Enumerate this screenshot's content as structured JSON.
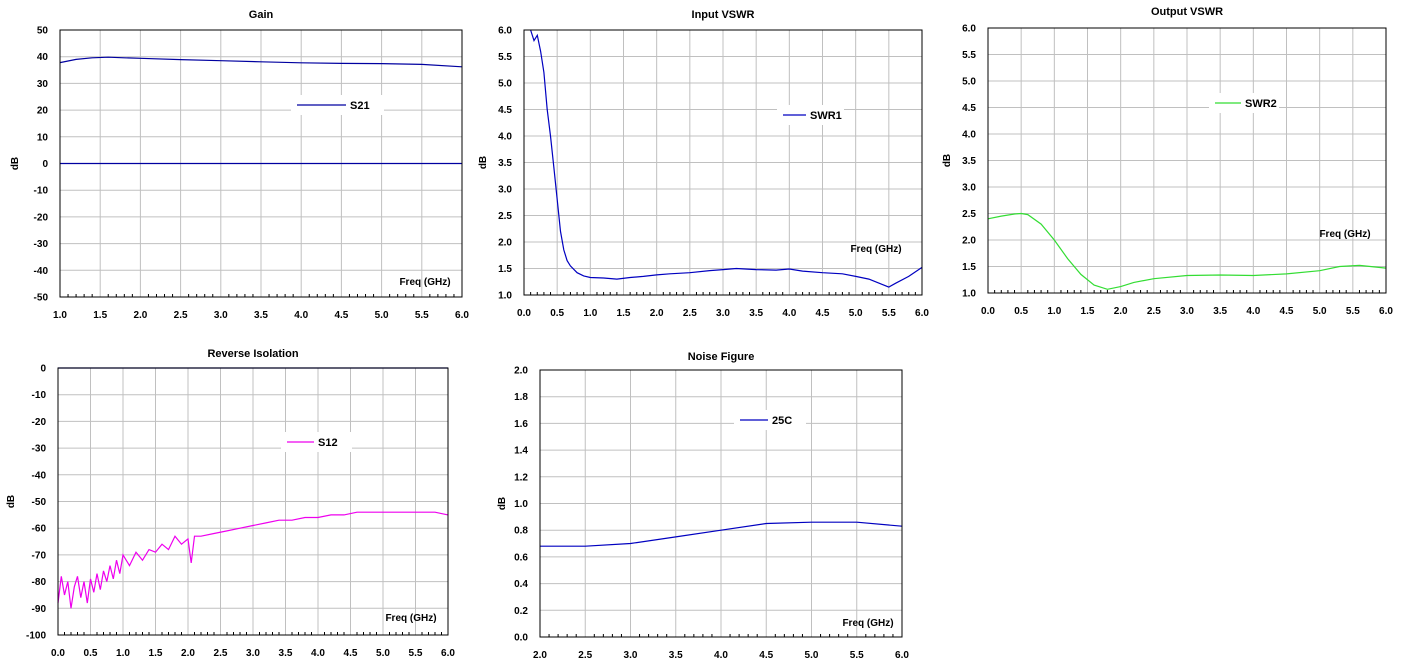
{
  "chart_data": [
    {
      "id": "gain",
      "type": "line",
      "title": "Gain",
      "xlabel": "Freq (GHz)",
      "ylabel": "dB",
      "xlim": [
        1.0,
        6.0
      ],
      "ylim": [
        -50,
        50
      ],
      "xticks": [
        1.0,
        1.5,
        2.0,
        2.5,
        3.0,
        3.5,
        4.0,
        4.5,
        5.0,
        5.5,
        6.0
      ],
      "yticks": [
        -50,
        -40,
        -30,
        -20,
        -10,
        0,
        10,
        20,
        30,
        40,
        50
      ],
      "xtick_decimals": 1,
      "ytick_decimals": 0,
      "grid": true,
      "legend": "center",
      "series": [
        {
          "name": "S21",
          "color": "#0000a0",
          "x": [
            1.0,
            1.2,
            1.4,
            1.6,
            1.8,
            2.0,
            2.5,
            3.0,
            3.5,
            4.0,
            4.5,
            5.0,
            5.5,
            6.0
          ],
          "y": [
            37.8,
            39.0,
            39.6,
            39.8,
            39.6,
            39.4,
            38.9,
            38.5,
            38.1,
            37.7,
            37.5,
            37.4,
            37.1,
            36.2
          ]
        },
        {
          "name": "",
          "color": "#0000a0",
          "x": [
            1.0,
            6.0
          ],
          "y": [
            0,
            0
          ]
        }
      ]
    },
    {
      "id": "input_vswr",
      "type": "line",
      "title": "Input VSWR",
      "xlabel": "Freq (GHz)",
      "ylabel": "dB",
      "xlim": [
        0.0,
        6.0
      ],
      "ylim": [
        1.0,
        6.0
      ],
      "xticks": [
        0.0,
        0.5,
        1.0,
        1.5,
        2.0,
        2.5,
        3.0,
        3.5,
        4.0,
        4.5,
        5.0,
        5.5,
        6.0
      ],
      "yticks": [
        1.0,
        1.5,
        2.0,
        2.5,
        3.0,
        3.5,
        4.0,
        4.5,
        5.0,
        5.5,
        6.0
      ],
      "xtick_decimals": 1,
      "ytick_decimals": 1,
      "grid": true,
      "legend": "top-right",
      "series": [
        {
          "name": "SWR1",
          "color": "#0000c0",
          "x": [
            0.1,
            0.15,
            0.2,
            0.25,
            0.3,
            0.35,
            0.4,
            0.45,
            0.5,
            0.55,
            0.6,
            0.65,
            0.7,
            0.8,
            0.9,
            1.0,
            1.2,
            1.4,
            1.6,
            1.8,
            2.0,
            2.2,
            2.5,
            2.8,
            3.0,
            3.2,
            3.5,
            3.8,
            4.0,
            4.2,
            4.5,
            4.8,
            5.0,
            5.2,
            5.4,
            5.5,
            5.6,
            5.8,
            6.0
          ],
          "y": [
            6.0,
            5.8,
            5.9,
            5.6,
            5.2,
            4.5,
            4.0,
            3.4,
            2.8,
            2.2,
            1.85,
            1.65,
            1.55,
            1.42,
            1.36,
            1.33,
            1.32,
            1.3,
            1.33,
            1.35,
            1.38,
            1.4,
            1.42,
            1.46,
            1.48,
            1.5,
            1.48,
            1.47,
            1.49,
            1.45,
            1.42,
            1.4,
            1.35,
            1.3,
            1.2,
            1.15,
            1.22,
            1.35,
            1.52
          ]
        }
      ]
    },
    {
      "id": "output_vswr",
      "type": "line",
      "title": "Output VSWR",
      "xlabel": "Freq (GHz)",
      "ylabel": "dB",
      "xlim": [
        0.0,
        6.0
      ],
      "ylim": [
        1.0,
        6.0
      ],
      "xticks": [
        0.0,
        0.5,
        1.0,
        1.5,
        2.0,
        2.5,
        3.0,
        3.5,
        4.0,
        4.5,
        5.0,
        5.5,
        6.0
      ],
      "yticks": [
        1.0,
        1.5,
        2.0,
        2.5,
        3.0,
        3.5,
        4.0,
        4.5,
        5.0,
        5.5,
        6.0
      ],
      "xtick_decimals": 1,
      "ytick_decimals": 1,
      "grid": true,
      "legend": "top-right",
      "series": [
        {
          "name": "SWR2",
          "color": "#33dd33",
          "x": [
            0.0,
            0.2,
            0.4,
            0.5,
            0.6,
            0.8,
            1.0,
            1.2,
            1.4,
            1.6,
            1.8,
            2.0,
            2.2,
            2.5,
            3.0,
            3.5,
            4.0,
            4.5,
            5.0,
            5.3,
            5.6,
            6.0
          ],
          "y": [
            2.4,
            2.45,
            2.49,
            2.5,
            2.48,
            2.3,
            2.0,
            1.65,
            1.35,
            1.15,
            1.07,
            1.12,
            1.2,
            1.27,
            1.33,
            1.34,
            1.33,
            1.36,
            1.42,
            1.5,
            1.52,
            1.47
          ]
        }
      ]
    },
    {
      "id": "reverse_isolation",
      "type": "line",
      "title": "Reverse Isolation",
      "xlabel": "Freq (GHz)",
      "ylabel": "dB",
      "xlim": [
        0.0,
        6.0
      ],
      "ylim": [
        -100,
        0
      ],
      "xticks": [
        0.0,
        0.5,
        1.0,
        1.5,
        2.0,
        2.5,
        3.0,
        3.5,
        4.0,
        4.5,
        5.0,
        5.5,
        6.0
      ],
      "yticks": [
        -100,
        -90,
        -80,
        -70,
        -60,
        -50,
        -40,
        -30,
        -20,
        -10,
        0
      ],
      "xtick_decimals": 1,
      "ytick_decimals": 0,
      "grid": true,
      "legend": "center",
      "series": [
        {
          "name": "S12",
          "color": "#ee00ee",
          "x": [
            0.0,
            0.05,
            0.1,
            0.15,
            0.2,
            0.25,
            0.3,
            0.35,
            0.4,
            0.45,
            0.5,
            0.55,
            0.6,
            0.65,
            0.7,
            0.75,
            0.8,
            0.85,
            0.9,
            0.95,
            1.0,
            1.1,
            1.2,
            1.3,
            1.4,
            1.5,
            1.6,
            1.7,
            1.8,
            1.9,
            2.0,
            2.05,
            2.1,
            2.2,
            2.4,
            2.6,
            2.8,
            3.0,
            3.2,
            3.4,
            3.6,
            3.8,
            4.0,
            4.2,
            4.4,
            4.6,
            4.8,
            5.0,
            5.2,
            5.4,
            5.6,
            5.8,
            6.0
          ],
          "y": [
            -88,
            -78,
            -85,
            -80,
            -90,
            -82,
            -78,
            -86,
            -80,
            -88,
            -79,
            -84,
            -77,
            -83,
            -76,
            -80,
            -74,
            -79,
            -72,
            -77,
            -70,
            -74,
            -69,
            -72,
            -68,
            -69,
            -66,
            -68,
            -63,
            -66,
            -64,
            -73,
            -63,
            -63,
            -62,
            -61,
            -60,
            -59,
            -58,
            -57,
            -57,
            -56,
            -56,
            -55,
            -55,
            -54,
            -54,
            -54,
            -54,
            -54,
            -54,
            -54,
            -55
          ]
        },
        {
          "name": "",
          "color": "#0000a0",
          "x": [
            0.0,
            6.0
          ],
          "y": [
            0,
            0
          ]
        }
      ]
    },
    {
      "id": "noise_figure",
      "type": "line",
      "title": "Noise Figure",
      "xlabel": "Freq (GHz)",
      "ylabel": "dB",
      "xlim": [
        2.0,
        6.0
      ],
      "ylim": [
        0.0,
        2.0
      ],
      "xticks": [
        2.0,
        2.5,
        3.0,
        3.5,
        4.0,
        4.5,
        5.0,
        5.5,
        6.0
      ],
      "yticks": [
        0.0,
        0.2,
        0.4,
        0.6,
        0.8,
        1.0,
        1.2,
        1.4,
        1.6,
        1.8,
        2.0
      ],
      "xtick_decimals": 1,
      "ytick_decimals": 1,
      "grid": true,
      "legend": "top-center",
      "series": [
        {
          "name": "25C",
          "color": "#0000c0",
          "x": [
            2.0,
            2.5,
            3.0,
            3.5,
            4.0,
            4.5,
            5.0,
            5.5,
            6.0
          ],
          "y": [
            0.68,
            0.68,
            0.7,
            0.75,
            0.8,
            0.85,
            0.86,
            0.86,
            0.83
          ]
        }
      ]
    }
  ]
}
